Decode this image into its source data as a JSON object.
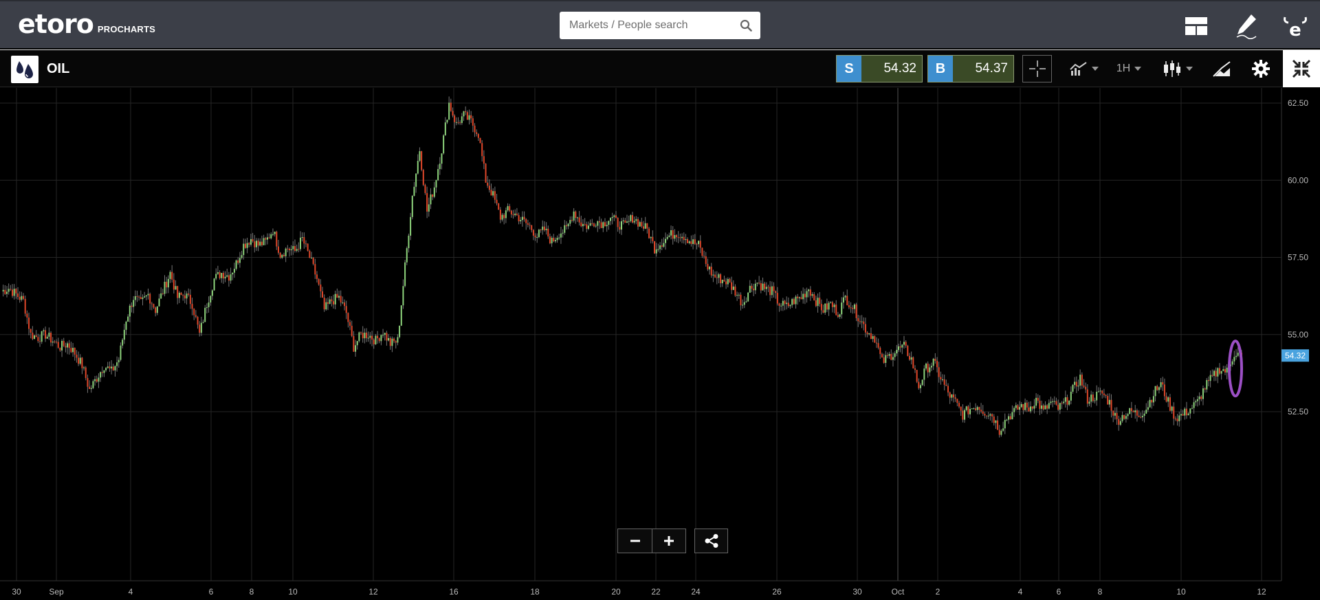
{
  "header": {
    "brand": "eToro",
    "brand_word": "etoro",
    "product": "PROCHARTS",
    "search": {
      "placeholder": "Markets / People search",
      "value": ""
    },
    "icons": [
      "layout-icon",
      "pencil-icon",
      "etoro-profile-icon"
    ]
  },
  "instrument": {
    "name": "OIL",
    "icon": "oil-drops-icon",
    "sell": {
      "label": "S",
      "price": "54.32"
    },
    "buy": {
      "label": "B",
      "price": "54.37"
    },
    "timeframe": "1H",
    "tools": [
      "crosshair-icon",
      "indicators-icon",
      "candlestick-type-icon",
      "drawing-tools-icon",
      "gear-icon",
      "collapse-fullscreen-icon"
    ]
  },
  "colors": {
    "up": "#8ed47c",
    "down": "#e0472a",
    "last_price_tag": "#4aa3df",
    "highlight_ellipse": "#9b4fc4",
    "sell_tag": "#3e8fcf",
    "price_bg": "#3a4a26"
  },
  "chart_data": {
    "type": "candlestick",
    "instrument": "OIL",
    "interval": "1H",
    "y_ticks": [
      "62.50",
      "60.00",
      "57.50",
      "55.00",
      "52.50"
    ],
    "ylim": [
      50.6,
      63.1
    ],
    "x_ticks": [
      "30",
      "Sep",
      "4",
      "6",
      "8",
      "10",
      "12",
      "16",
      "18",
      "20",
      "22",
      "24",
      "26",
      "30",
      "Oct",
      "2",
      "4",
      "6",
      "8",
      "10",
      "12"
    ],
    "last_price": "54.32",
    "series": [
      {
        "name": "OIL",
        "close_path": [
          56.4,
          56.5,
          56.3,
          56.1,
          55.0,
          54.9,
          55.0,
          54.8,
          54.6,
          54.7,
          54.4,
          54.0,
          53.2,
          53.6,
          54.0,
          53.8,
          54.2,
          55.5,
          56.2,
          56.0,
          56.3,
          55.8,
          56.4,
          57.0,
          56.2,
          56.3,
          56.0,
          55.0,
          56.0,
          56.8,
          57.0,
          56.9,
          57.3,
          57.9,
          58.1,
          57.9,
          58.0,
          58.4,
          57.6,
          57.8,
          57.7,
          58.1,
          57.5,
          56.8,
          55.8,
          56.1,
          56.2,
          55.7,
          54.6,
          55.0,
          55.0,
          54.8,
          55.1,
          54.7,
          54.8,
          57.2,
          59.5,
          61.0,
          59.0,
          59.8,
          61.0,
          62.5,
          61.8,
          62.1,
          61.9,
          61.5,
          60.0,
          59.5,
          58.8,
          59.0,
          58.9,
          58.7,
          58.5,
          58.2,
          58.4,
          58.0,
          58.3,
          58.4,
          59.0,
          58.6,
          58.5,
          58.7,
          58.6,
          58.8,
          58.6,
          58.5,
          58.8,
          58.6,
          58.4,
          57.8,
          58.0,
          58.2,
          58.3,
          58.2,
          58.0,
          57.9,
          57.3,
          56.9,
          56.8,
          56.7,
          56.4,
          56.0,
          56.5,
          56.7,
          56.5,
          56.4,
          56.0,
          55.9,
          56.1,
          56.2,
          56.5,
          56.1,
          55.8,
          56.0,
          55.7,
          56.2,
          55.9,
          55.5,
          55.1,
          54.9,
          54.1,
          54.3,
          54.5,
          54.6,
          54.2,
          53.3,
          53.9,
          54.1,
          53.6,
          53.1,
          52.8,
          52.4,
          52.6,
          52.7,
          52.5,
          52.4,
          51.9,
          52.3,
          52.5,
          52.7,
          52.6,
          52.9,
          52.5,
          52.8,
          52.6,
          52.8,
          53.2,
          53.6,
          52.9,
          53.0,
          53.1,
          52.8,
          52.2,
          52.4,
          52.5,
          52.4,
          52.6,
          53.1,
          53.4,
          52.8,
          52.3,
          52.4,
          52.6,
          52.8,
          53.3,
          53.6,
          53.9,
          53.8,
          54.4,
          54.32
        ]
      }
    ],
    "annotation": {
      "type": "ellipse",
      "description": "highlight around latest candles"
    }
  }
}
